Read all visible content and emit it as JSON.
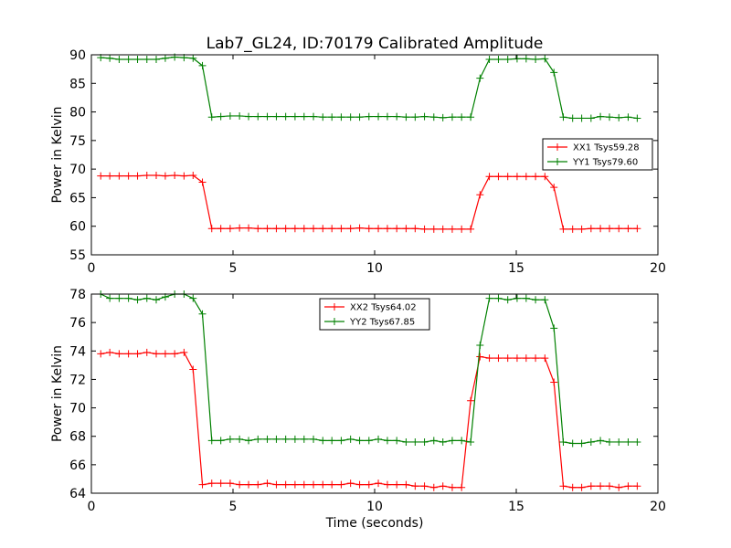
{
  "chart_data": [
    {
      "type": "line",
      "title": "Lab7_GL24, ID:70179 Calibrated Amplitude",
      "xlabel": "",
      "ylabel": "Power in Kelvin",
      "xlim": [
        0,
        20
      ],
      "ylim": [
        55,
        90
      ],
      "xticks": [
        0,
        5,
        10,
        15,
        20
      ],
      "yticks": [
        55,
        60,
        65,
        70,
        75,
        80,
        85,
        90
      ],
      "grid": false,
      "legend_position": "center-right",
      "x": [
        0.33,
        0.65,
        0.98,
        1.31,
        1.63,
        1.96,
        2.29,
        2.61,
        2.94,
        3.27,
        3.59,
        3.92,
        4.25,
        4.57,
        4.9,
        5.23,
        5.55,
        5.88,
        6.21,
        6.53,
        6.86,
        7.19,
        7.51,
        7.84,
        8.17,
        8.49,
        8.82,
        9.15,
        9.47,
        9.8,
        10.13,
        10.45,
        10.78,
        11.11,
        11.43,
        11.76,
        12.09,
        12.41,
        12.74,
        13.07,
        13.39,
        13.72,
        14.05,
        14.37,
        14.7,
        15.03,
        15.35,
        15.68,
        16.01,
        16.33,
        16.66,
        16.99,
        17.31,
        17.64,
        17.97,
        18.29,
        18.62,
        18.95,
        19.27
      ],
      "series": [
        {
          "name": "XX1 Tsys59.28",
          "color": "#ff0000",
          "values": [
            68.8,
            68.8,
            68.8,
            68.8,
            68.8,
            68.9,
            68.9,
            68.8,
            68.9,
            68.8,
            68.9,
            67.7,
            59.6,
            59.6,
            59.6,
            59.7,
            59.7,
            59.6,
            59.6,
            59.6,
            59.6,
            59.6,
            59.6,
            59.6,
            59.6,
            59.6,
            59.6,
            59.6,
            59.7,
            59.6,
            59.6,
            59.6,
            59.6,
            59.6,
            59.6,
            59.5,
            59.5,
            59.5,
            59.5,
            59.5,
            59.5,
            65.5,
            68.7,
            68.7,
            68.7,
            68.7,
            68.7,
            68.7,
            68.7,
            66.8,
            59.5,
            59.5,
            59.5,
            59.6,
            59.6,
            59.6,
            59.6,
            59.6,
            59.6
          ]
        },
        {
          "name": "YY1 Tsys79.60",
          "color": "#008000",
          "values": [
            89.5,
            89.4,
            89.2,
            89.2,
            89.2,
            89.2,
            89.2,
            89.4,
            89.6,
            89.5,
            89.4,
            88.1,
            79.1,
            79.2,
            79.3,
            79.3,
            79.2,
            79.2,
            79.2,
            79.2,
            79.2,
            79.2,
            79.2,
            79.2,
            79.1,
            79.1,
            79.1,
            79.1,
            79.1,
            79.2,
            79.2,
            79.2,
            79.2,
            79.1,
            79.1,
            79.2,
            79.1,
            79.0,
            79.1,
            79.1,
            79.1,
            85.9,
            89.2,
            89.2,
            89.2,
            89.3,
            89.3,
            89.2,
            89.3,
            86.9,
            79.1,
            78.9,
            78.9,
            78.9,
            79.2,
            79.1,
            79.0,
            79.1,
            78.9
          ]
        }
      ]
    },
    {
      "type": "line",
      "title": "",
      "xlabel": "Time (seconds)",
      "ylabel": "Power in Kelvin",
      "xlim": [
        0,
        20
      ],
      "ylim": [
        64,
        78
      ],
      "xticks": [
        0,
        5,
        10,
        15,
        20
      ],
      "yticks": [
        64,
        66,
        68,
        70,
        72,
        74,
        76,
        78
      ],
      "grid": false,
      "legend_position": "top-center",
      "x": [
        0.33,
        0.65,
        0.98,
        1.31,
        1.63,
        1.96,
        2.29,
        2.61,
        2.94,
        3.27,
        3.59,
        3.92,
        4.25,
        4.57,
        4.9,
        5.23,
        5.55,
        5.88,
        6.21,
        6.53,
        6.86,
        7.19,
        7.51,
        7.84,
        8.17,
        8.49,
        8.82,
        9.15,
        9.47,
        9.8,
        10.13,
        10.45,
        10.78,
        11.11,
        11.43,
        11.76,
        12.09,
        12.41,
        12.74,
        13.07,
        13.39,
        13.72,
        14.05,
        14.37,
        14.7,
        15.03,
        15.35,
        15.68,
        16.01,
        16.33,
        16.66,
        16.99,
        17.31,
        17.64,
        17.97,
        18.29,
        18.62,
        18.95,
        19.27
      ],
      "series": [
        {
          "name": "XX2 Tsys64.02",
          "color": "#ff0000",
          "values": [
            73.8,
            73.9,
            73.8,
            73.8,
            73.8,
            73.9,
            73.8,
            73.8,
            73.8,
            73.9,
            72.7,
            64.6,
            64.7,
            64.7,
            64.7,
            64.6,
            64.6,
            64.6,
            64.7,
            64.6,
            64.6,
            64.6,
            64.6,
            64.6,
            64.6,
            64.6,
            64.6,
            64.7,
            64.6,
            64.6,
            64.7,
            64.6,
            64.6,
            64.6,
            64.5,
            64.5,
            64.4,
            64.5,
            64.4,
            64.4,
            70.5,
            73.6,
            73.5,
            73.5,
            73.5,
            73.5,
            73.5,
            73.5,
            73.5,
            71.8,
            64.5,
            64.4,
            64.4,
            64.5,
            64.5,
            64.5,
            64.4,
            64.5,
            64.5
          ],
          "x_offset": -0.01
        },
        {
          "name": "YY2 Tsys67.85",
          "color": "#008000",
          "values": [
            78.0,
            77.7,
            77.7,
            77.7,
            77.6,
            77.7,
            77.6,
            77.8,
            78.0,
            78.0,
            77.7,
            76.6,
            67.7,
            67.7,
            67.8,
            67.8,
            67.7,
            67.8,
            67.8,
            67.8,
            67.8,
            67.8,
            67.8,
            67.8,
            67.7,
            67.7,
            67.7,
            67.8,
            67.7,
            67.7,
            67.8,
            67.7,
            67.7,
            67.6,
            67.6,
            67.6,
            67.7,
            67.6,
            67.7,
            67.7,
            67.6,
            74.4,
            77.7,
            77.7,
            77.6,
            77.7,
            77.7,
            77.6,
            77.6,
            75.6,
            67.6,
            67.5,
            67.5,
            67.6,
            67.7,
            67.6,
            67.6,
            67.6,
            67.6
          ]
        }
      ]
    }
  ]
}
